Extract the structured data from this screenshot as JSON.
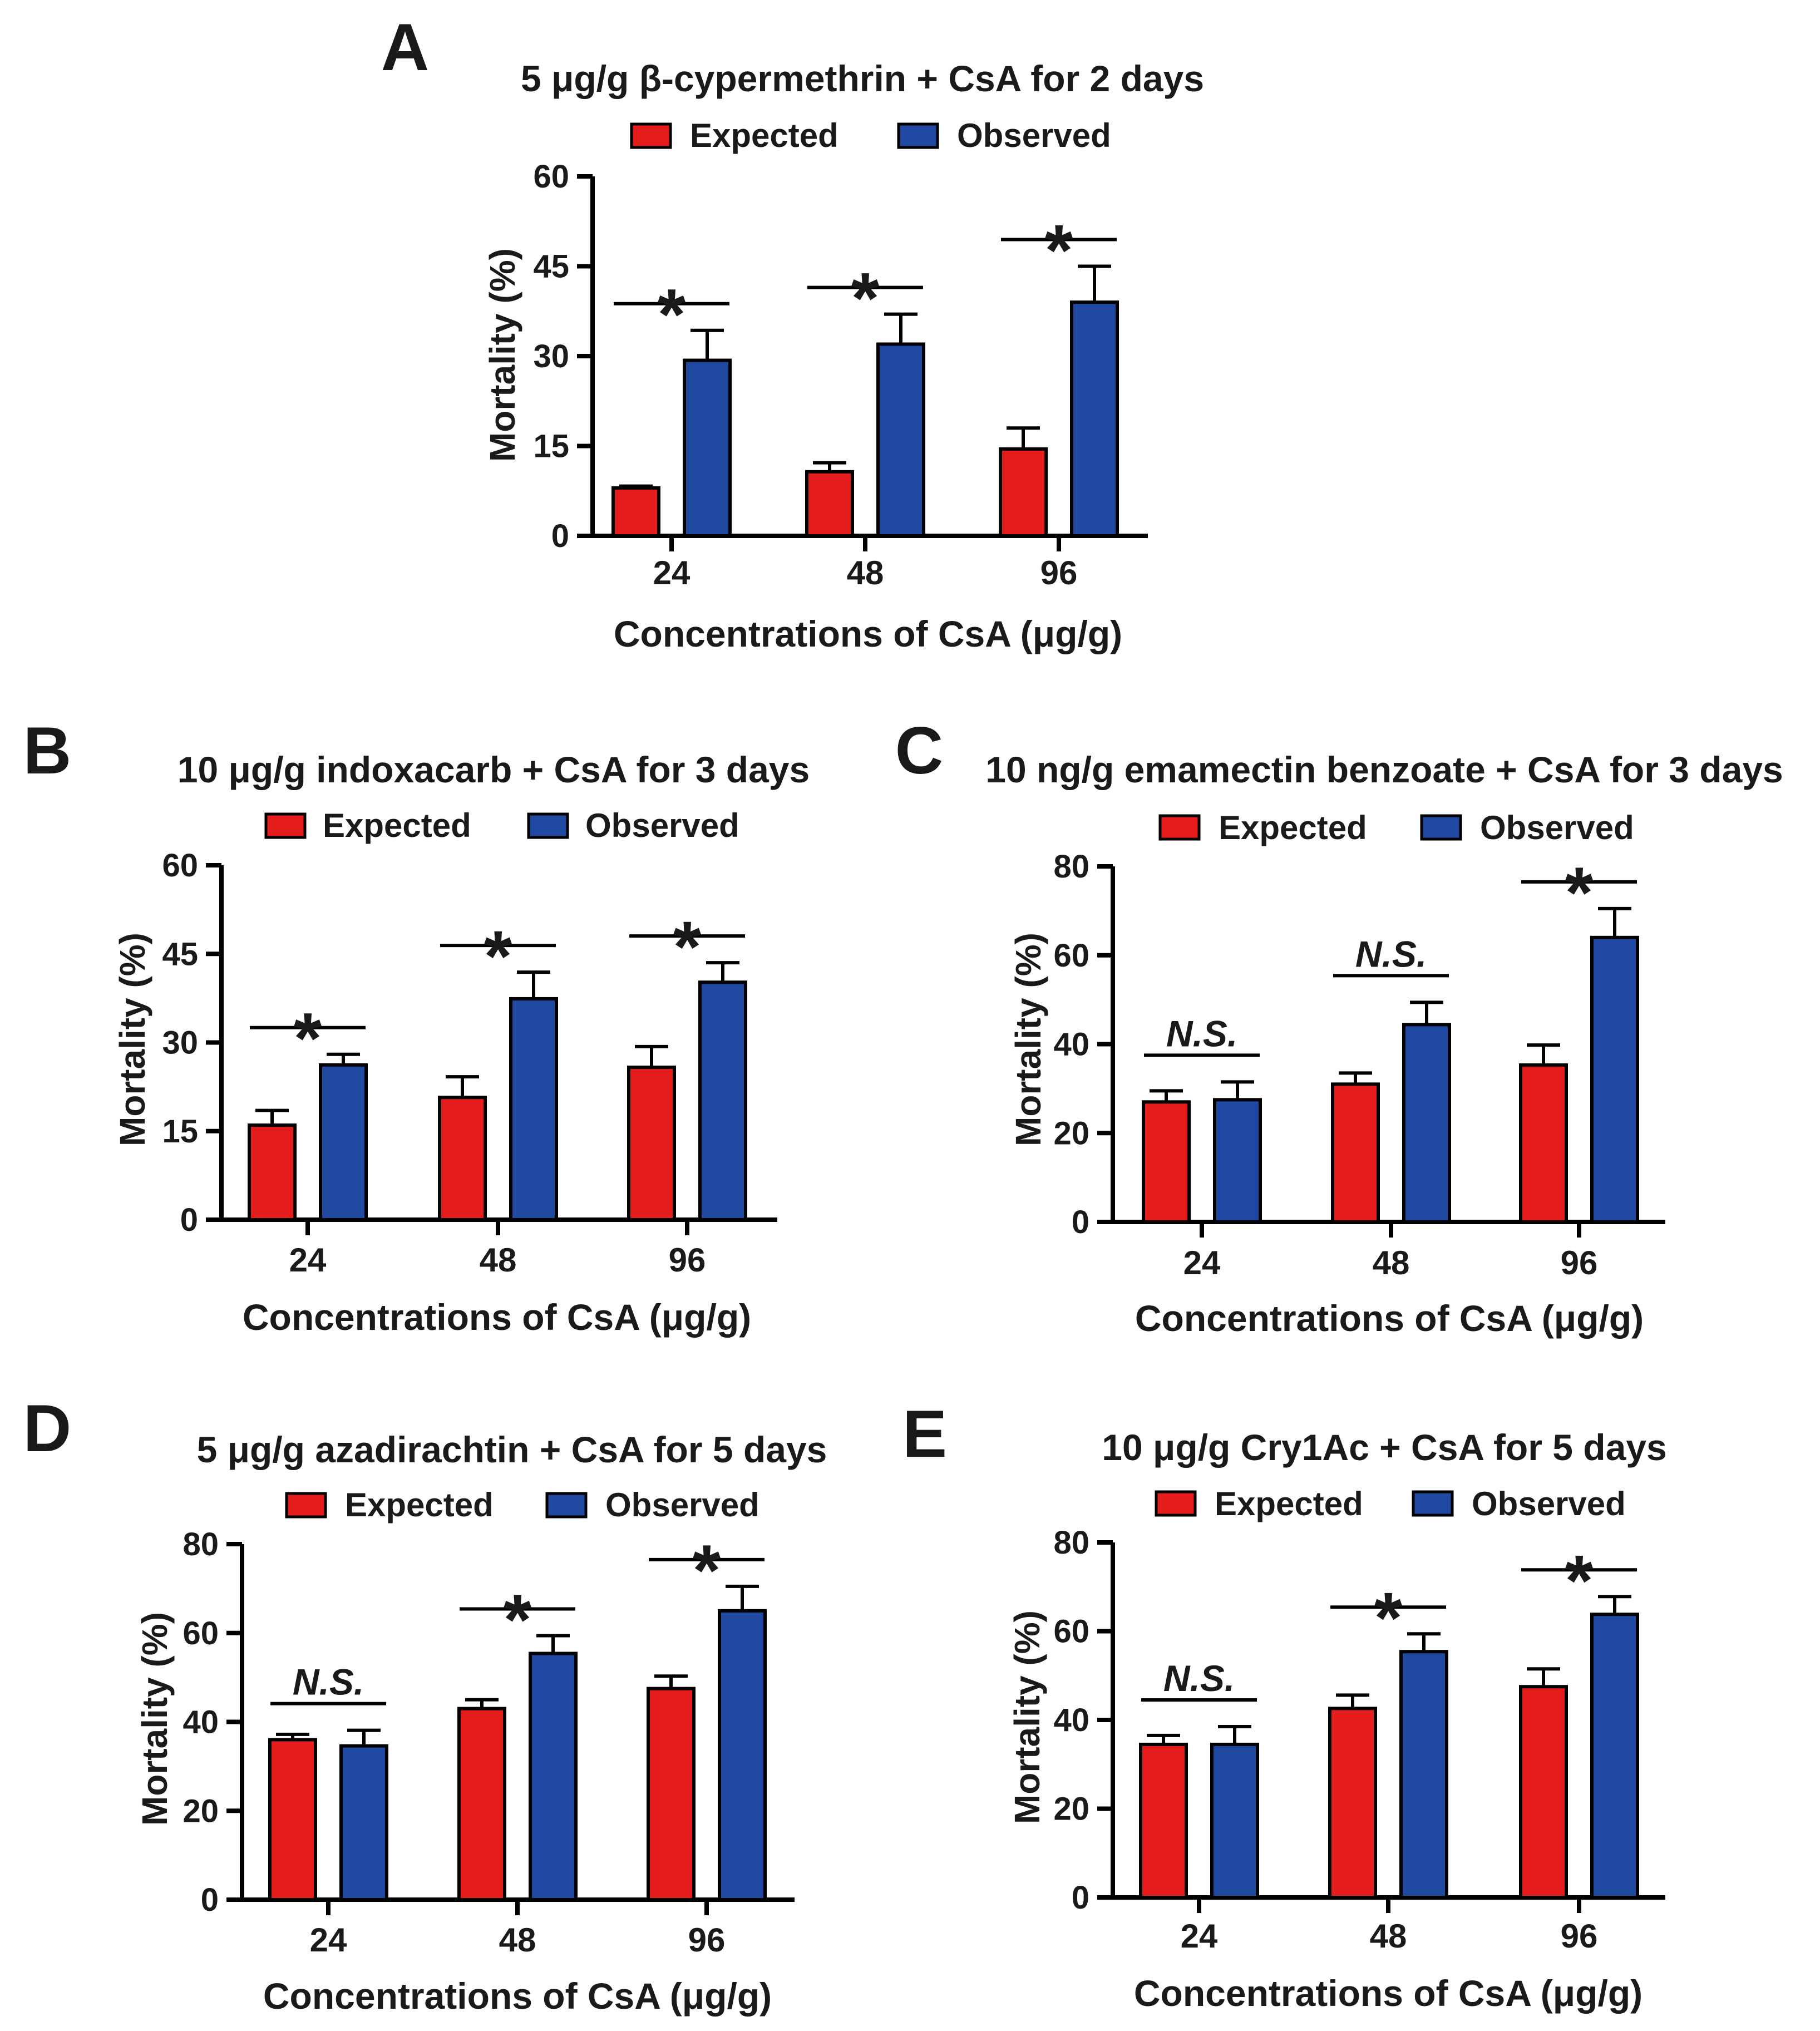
{
  "colors": {
    "expected": "#e41c1c",
    "observed": "#1f48a0",
    "ink": "#1a1a1a"
  },
  "chart_data": [
    {
      "panel": "A",
      "type": "bar",
      "title": "5 μg/g β-cypermethrin + CsA for 2 days",
      "legend": [
        "Expected",
        "Observed"
      ],
      "legend_placement": "top",
      "xlabel": "Concentrations of CsA (μg/g)",
      "ylabel": "Mortality (%)",
      "categories": [
        "24",
        "48",
        "96"
      ],
      "ylim": [
        0,
        60
      ],
      "yticks": [
        0,
        15,
        30,
        45,
        60
      ],
      "series": [
        {
          "name": "Expected",
          "values": [
            8,
            10.7,
            14.5
          ],
          "errors": [
            0.3,
            1.5,
            3.5
          ]
        },
        {
          "name": "Observed",
          "values": [
            29.3,
            32,
            39
          ],
          "errors": [
            5,
            5,
            6
          ]
        }
      ],
      "significance": [
        "*",
        "*",
        "*"
      ]
    },
    {
      "panel": "B",
      "type": "bar",
      "title": "10 μg/g indoxacarb + CsA for 3 days",
      "legend": [
        "Expected",
        "Observed"
      ],
      "legend_placement": "top",
      "xlabel": "Concentrations of CsA (μg/g)",
      "ylabel": "Mortality (%)",
      "categories": [
        "24",
        "48",
        "96"
      ],
      "ylim": [
        0,
        60
      ],
      "yticks": [
        0,
        15,
        30,
        45,
        60
      ],
      "series": [
        {
          "name": "Expected",
          "values": [
            16,
            20.7,
            25.8
          ],
          "errors": [
            2.5,
            3.5,
            3.5
          ]
        },
        {
          "name": "Observed",
          "values": [
            26.2,
            37.4,
            40.2
          ],
          "errors": [
            1.8,
            4.5,
            3.3
          ]
        }
      ],
      "significance": [
        "*",
        "*",
        "*"
      ]
    },
    {
      "panel": "C",
      "type": "bar",
      "title": "10 ng/g emamectin benzoate + CsA for 3 days",
      "legend": [
        "Expected",
        "Observed"
      ],
      "legend_placement": "top",
      "xlabel": "Concentrations of CsA (μg/g)",
      "ylabel": "Mortality (%)",
      "categories": [
        "24",
        "48",
        "96"
      ],
      "ylim": [
        0,
        80
      ],
      "yticks": [
        0,
        20,
        40,
        60,
        80
      ],
      "series": [
        {
          "name": "Expected",
          "values": [
            27,
            31,
            35.3
          ],
          "errors": [
            2.5,
            2.5,
            4.5
          ]
        },
        {
          "name": "Observed",
          "values": [
            27.5,
            44.4,
            64
          ],
          "errors": [
            4,
            5,
            6.5
          ]
        }
      ],
      "significance": [
        "N.S.",
        "N.S.",
        "*"
      ]
    },
    {
      "panel": "D",
      "type": "bar",
      "title": "5 μg/g azadirachtin + CsA for 5 days",
      "legend": [
        "Expected",
        "Observed"
      ],
      "legend_placement": "top",
      "xlabel": "Concentrations of CsA (μg/g)",
      "ylabel": "Mortality (%)",
      "categories": [
        "24",
        "48",
        "96"
      ],
      "ylim": [
        0,
        80
      ],
      "yticks": [
        0,
        20,
        40,
        60,
        80
      ],
      "series": [
        {
          "name": "Expected",
          "values": [
            36,
            43,
            47.5
          ],
          "errors": [
            1.2,
            2,
            2.8
          ]
        },
        {
          "name": "Observed",
          "values": [
            34.6,
            55.4,
            65
          ],
          "errors": [
            3.5,
            4,
            5.5
          ]
        }
      ],
      "significance": [
        "N.S.",
        "*",
        "*"
      ]
    },
    {
      "panel": "E",
      "type": "bar",
      "title": "10 μg/g Cry1Ac + CsA for 5 days",
      "legend": [
        "Expected",
        "Observed"
      ],
      "legend_placement": "top",
      "xlabel": "Concentrations of CsA (μg/g)",
      "ylabel": "Mortality (%)",
      "categories": [
        "24",
        "48",
        "96"
      ],
      "ylim": [
        0,
        80
      ],
      "yticks": [
        0,
        20,
        40,
        60,
        80
      ],
      "series": [
        {
          "name": "Expected",
          "values": [
            34.5,
            42.6,
            47.5
          ],
          "errors": [
            2,
            3,
            4
          ]
        },
        {
          "name": "Observed",
          "values": [
            34.5,
            55.4,
            63.8
          ],
          "errors": [
            4,
            4,
            4
          ]
        }
      ],
      "significance": [
        "N.S.",
        "*",
        "*"
      ]
    }
  ]
}
